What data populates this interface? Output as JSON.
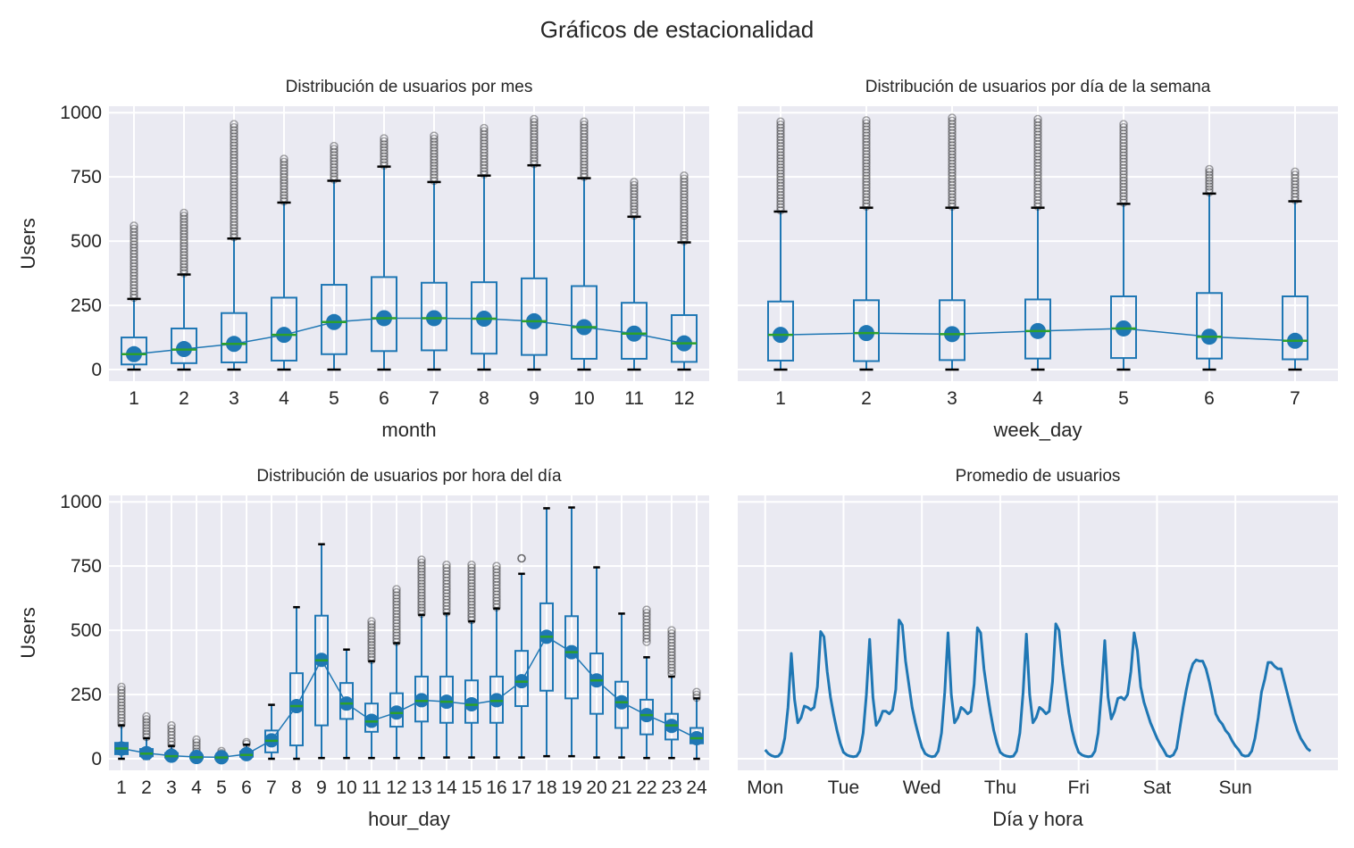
{
  "suptitle": "Gráficos de estacionalidad",
  "colors": {
    "box": "#1f77b4",
    "median": "#2ca02c",
    "mean": "#1f77b4",
    "cap": "#000000",
    "flier": "#000000",
    "background": "#eaeaf2",
    "grid": "#ffffff"
  },
  "chart_data": [
    {
      "type": "box",
      "title": "Distribución de usuarios por mes",
      "xlabel": "month",
      "ylabel": "Users",
      "ylim": [
        -45,
        1025
      ],
      "yticks": [
        0,
        250,
        500,
        750,
        1000
      ],
      "grid": true,
      "categories": [
        "1",
        "2",
        "3",
        "4",
        "5",
        "6",
        "7",
        "8",
        "9",
        "10",
        "11",
        "12"
      ],
      "boxes": [
        {
          "whislo": 0,
          "q1": 20,
          "med": 60,
          "q3": 125,
          "whishi": 275,
          "mean": 60,
          "flier_min": 280,
          "flier_max": 560
        },
        {
          "whislo": 0,
          "q1": 25,
          "med": 78,
          "q3": 160,
          "whishi": 370,
          "mean": 80,
          "flier_min": 375,
          "flier_max": 610
        },
        {
          "whislo": 0,
          "q1": 28,
          "med": 100,
          "q3": 220,
          "whishi": 510,
          "mean": 100,
          "flier_min": 515,
          "flier_max": 955
        },
        {
          "whislo": 0,
          "q1": 35,
          "med": 135,
          "q3": 280,
          "whishi": 650,
          "mean": 135,
          "flier_min": 655,
          "flier_max": 820
        },
        {
          "whislo": 0,
          "q1": 60,
          "med": 185,
          "q3": 330,
          "whishi": 735,
          "mean": 185,
          "flier_min": 740,
          "flier_max": 870
        },
        {
          "whislo": 0,
          "q1": 72,
          "med": 200,
          "q3": 360,
          "whishi": 790,
          "mean": 200,
          "flier_min": 795,
          "flier_max": 900
        },
        {
          "whislo": 0,
          "q1": 75,
          "med": 200,
          "q3": 338,
          "whishi": 730,
          "mean": 200,
          "flier_min": 735,
          "flier_max": 910
        },
        {
          "whislo": 0,
          "q1": 62,
          "med": 198,
          "q3": 340,
          "whishi": 755,
          "mean": 198,
          "flier_min": 760,
          "flier_max": 940
        },
        {
          "whislo": 0,
          "q1": 57,
          "med": 188,
          "q3": 355,
          "whishi": 795,
          "mean": 188,
          "flier_min": 800,
          "flier_max": 975
        },
        {
          "whislo": 0,
          "q1": 42,
          "med": 165,
          "q3": 325,
          "whishi": 745,
          "mean": 165,
          "flier_min": 750,
          "flier_max": 965
        },
        {
          "whislo": 0,
          "q1": 42,
          "med": 140,
          "q3": 260,
          "whishi": 595,
          "mean": 140,
          "flier_min": 600,
          "flier_max": 730
        },
        {
          "whislo": 0,
          "q1": 30,
          "med": 102,
          "q3": 212,
          "whishi": 495,
          "mean": 102,
          "flier_min": 500,
          "flier_max": 755
        }
      ]
    },
    {
      "type": "box",
      "title": "Distribución de usuarios por día de la semana",
      "xlabel": "week_day",
      "ylabel": "",
      "ylim": [
        -45,
        1025
      ],
      "yticks": [
        0,
        250,
        500,
        750,
        1000
      ],
      "grid": true,
      "categories": [
        "1",
        "2",
        "3",
        "4",
        "5",
        "6",
        "7"
      ],
      "boxes": [
        {
          "whislo": 0,
          "q1": 35,
          "med": 135,
          "q3": 265,
          "whishi": 615,
          "mean": 135,
          "flier_min": 620,
          "flier_max": 965
        },
        {
          "whislo": 0,
          "q1": 33,
          "med": 142,
          "q3": 270,
          "whishi": 630,
          "mean": 142,
          "flier_min": 635,
          "flier_max": 970
        },
        {
          "whislo": 0,
          "q1": 37,
          "med": 138,
          "q3": 270,
          "whishi": 630,
          "mean": 138,
          "flier_min": 635,
          "flier_max": 980
        },
        {
          "whislo": 0,
          "q1": 43,
          "med": 150,
          "q3": 273,
          "whishi": 630,
          "mean": 150,
          "flier_min": 635,
          "flier_max": 975
        },
        {
          "whislo": 0,
          "q1": 45,
          "med": 160,
          "q3": 285,
          "whishi": 645,
          "mean": 160,
          "flier_min": 650,
          "flier_max": 955
        },
        {
          "whislo": 0,
          "q1": 43,
          "med": 128,
          "q3": 298,
          "whishi": 685,
          "mean": 128,
          "flier_min": 690,
          "flier_max": 780
        },
        {
          "whislo": 0,
          "q1": 40,
          "med": 112,
          "q3": 285,
          "whishi": 655,
          "mean": 112,
          "flier_min": 660,
          "flier_max": 770
        }
      ]
    },
    {
      "type": "box",
      "title": "Distribución de usuarios por hora del día",
      "xlabel": "hour_day",
      "ylabel": "Users",
      "ylim": [
        -45,
        1025
      ],
      "yticks": [
        0,
        250,
        500,
        750,
        1000
      ],
      "grid": true,
      "categories": [
        "1",
        "2",
        "3",
        "4",
        "5",
        "6",
        "7",
        "8",
        "9",
        "10",
        "11",
        "12",
        "13",
        "14",
        "15",
        "16",
        "17",
        "18",
        "19",
        "20",
        "21",
        "22",
        "23",
        "24"
      ],
      "boxes": [
        {
          "whislo": 0,
          "q1": 18,
          "med": 40,
          "q3": 62,
          "whishi": 130,
          "mean": 40,
          "flier_min": 135,
          "flier_max": 280
        },
        {
          "whislo": 0,
          "q1": 10,
          "med": 20,
          "q3": 38,
          "whishi": 80,
          "mean": 22,
          "flier_min": 85,
          "flier_max": 165
        },
        {
          "whislo": 0,
          "q1": 5,
          "med": 10,
          "q3": 22,
          "whishi": 50,
          "mean": 12,
          "flier_min": 55,
          "flier_max": 130
        },
        {
          "whislo": 0,
          "q1": 3,
          "med": 6,
          "q3": 12,
          "whishi": 25,
          "mean": 7,
          "flier_min": 28,
          "flier_max": 75
        },
        {
          "whislo": 0,
          "q1": 2,
          "med": 5,
          "q3": 10,
          "whishi": 20,
          "mean": 6,
          "flier_min": 22,
          "flier_max": 30
        },
        {
          "whislo": 0,
          "q1": 8,
          "med": 15,
          "q3": 28,
          "whishi": 55,
          "mean": 18,
          "flier_min": 58,
          "flier_max": 65
        },
        {
          "whislo": 0,
          "q1": 25,
          "med": 70,
          "q3": 110,
          "whishi": 210,
          "mean": 72,
          "flier_min": null,
          "flier_max": null
        },
        {
          "whislo": 0,
          "q1": 52,
          "med": 205,
          "q3": 333,
          "whishi": 590,
          "mean": 205,
          "flier_min": null,
          "flier_max": null
        },
        {
          "whislo": 3,
          "q1": 130,
          "med": 383,
          "q3": 557,
          "whishi": 835,
          "mean": 385,
          "flier_min": null,
          "flier_max": null
        },
        {
          "whislo": 3,
          "q1": 155,
          "med": 215,
          "q3": 295,
          "whishi": 425,
          "mean": 215,
          "flier_min": null,
          "flier_max": null
        },
        {
          "whislo": 3,
          "q1": 105,
          "med": 145,
          "q3": 215,
          "whishi": 380,
          "mean": 148,
          "flier_min": 385,
          "flier_max": 535
        },
        {
          "whislo": 3,
          "q1": 125,
          "med": 178,
          "q3": 255,
          "whishi": 450,
          "mean": 180,
          "flier_min": 455,
          "flier_max": 660
        },
        {
          "whislo": 3,
          "q1": 145,
          "med": 225,
          "q3": 320,
          "whishi": 560,
          "mean": 228,
          "flier_min": 565,
          "flier_max": 775
        },
        {
          "whislo": 5,
          "q1": 140,
          "med": 222,
          "q3": 320,
          "whishi": 565,
          "mean": 222,
          "flier_min": 570,
          "flier_max": 755
        },
        {
          "whislo": 5,
          "q1": 140,
          "med": 210,
          "q3": 305,
          "whishi": 535,
          "mean": 212,
          "flier_min": 540,
          "flier_max": 755
        },
        {
          "whislo": 5,
          "q1": 140,
          "med": 225,
          "q3": 320,
          "whishi": 585,
          "mean": 228,
          "flier_min": 590,
          "flier_max": 750
        },
        {
          "whislo": 5,
          "q1": 205,
          "med": 300,
          "q3": 420,
          "whishi": 720,
          "mean": 302,
          "flier_min": null,
          "flier_max": 780
        },
        {
          "whislo": 10,
          "q1": 265,
          "med": 475,
          "q3": 605,
          "whishi": 975,
          "mean": 475,
          "flier_min": null,
          "flier_max": null
        },
        {
          "whislo": 10,
          "q1": 235,
          "med": 415,
          "q3": 555,
          "whishi": 978,
          "mean": 415,
          "flier_min": null,
          "flier_max": null
        },
        {
          "whislo": 5,
          "q1": 175,
          "med": 305,
          "q3": 410,
          "whishi": 745,
          "mean": 305,
          "flier_min": null,
          "flier_max": null
        },
        {
          "whislo": 5,
          "q1": 120,
          "med": 220,
          "q3": 300,
          "whishi": 565,
          "mean": 220,
          "flier_min": null,
          "flier_max": null
        },
        {
          "whislo": 3,
          "q1": 95,
          "med": 170,
          "q3": 230,
          "whishi": 395,
          "mean": 170,
          "flier_min": 455,
          "flier_max": 580
        },
        {
          "whislo": 3,
          "q1": 75,
          "med": 130,
          "q3": 175,
          "whishi": 320,
          "mean": 128,
          "flier_min": 330,
          "flier_max": 500
        },
        {
          "whislo": 0,
          "q1": 60,
          "med": 80,
          "q3": 120,
          "whishi": 235,
          "mean": 80,
          "flier_min": 238,
          "flier_max": 260
        }
      ]
    },
    {
      "type": "line",
      "title": "Promedio de usuarios",
      "xlabel": "Día y hora",
      "ylabel": "",
      "ylim": [
        -45,
        1025
      ],
      "yticks": [
        0,
        250,
        500,
        750,
        1000
      ],
      "xticks": [
        "Mon",
        "Tue",
        "Wed",
        "Thu",
        "Fri",
        "Sat",
        "Sun"
      ],
      "grid": true,
      "series": [
        {
          "name": "Promedio",
          "values": [
            35,
            20,
            12,
            8,
            10,
            25,
            80,
            200,
            410,
            230,
            140,
            160,
            205,
            200,
            190,
            200,
            280,
            495,
            475,
            340,
            240,
            170,
            110,
            60,
            25,
            15,
            10,
            8,
            10,
            30,
            100,
            250,
            465,
            240,
            130,
            150,
            185,
            185,
            175,
            190,
            270,
            540,
            520,
            380,
            290,
            200,
            140,
            90,
            45,
            20,
            12,
            8,
            10,
            30,
            100,
            260,
            490,
            250,
            140,
            160,
            200,
            190,
            175,
            185,
            290,
            510,
            490,
            350,
            260,
            180,
            110,
            60,
            25,
            15,
            10,
            8,
            10,
            30,
            100,
            260,
            485,
            250,
            140,
            160,
            200,
            190,
            175,
            185,
            300,
            525,
            500,
            370,
            270,
            180,
            110,
            60,
            25,
            15,
            10,
            8,
            10,
            30,
            100,
            260,
            460,
            240,
            155,
            185,
            235,
            240,
            230,
            250,
            340,
            490,
            420,
            280,
            220,
            180,
            140,
            110,
            80,
            55,
            35,
            12,
            8,
            15,
            40,
            120,
            200,
            270,
            330,
            370,
            385,
            380,
            380,
            350,
            300,
            240,
            175,
            150,
            135,
            110,
            95,
            70,
            50,
            35,
            15,
            10,
            12,
            30,
            80,
            160,
            260,
            310,
            375,
            375,
            360,
            350,
            350,
            300,
            250,
            200,
            150,
            110,
            80,
            60,
            40,
            30
          ]
        }
      ]
    }
  ]
}
